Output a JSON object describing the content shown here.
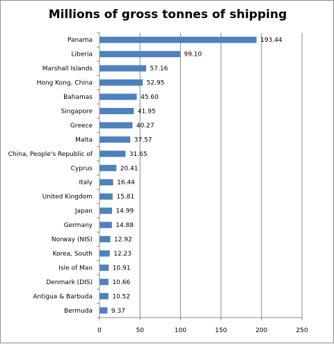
{
  "chart_data": {
    "type": "bar",
    "orientation": "horizontal",
    "title": "Millions of gross tonnes of shipping",
    "xlabel": "",
    "ylabel": "",
    "categories": [
      "Panama",
      "Liberia",
      "Marshall Islands",
      "Hong Kong, China",
      "Bahamas",
      "Singapore",
      "Greece",
      "Malta",
      "China, People's Republic of",
      "Cyprus",
      "Italy",
      "United Kingdom",
      "Japan",
      "Germany",
      "Norway (NIS)",
      "Korea, South",
      "Isle of Man",
      "Denmark (DIS)",
      "Antigua & Barbuda",
      "Bermuda"
    ],
    "values": [
      193.44,
      99.1,
      57.16,
      52.95,
      45.6,
      41.95,
      40.27,
      37.57,
      31.65,
      20.41,
      16.44,
      15.81,
      14.99,
      14.88,
      12.92,
      12.23,
      10.91,
      10.66,
      10.52,
      9.37
    ],
    "value_labels": [
      "193.44",
      "99.10",
      "57.16",
      "52.95",
      "45.60",
      "41.95",
      "40.27",
      "37.57",
      "31.65",
      "20.41",
      "16.44",
      "15.81",
      "14.99",
      "14.88",
      "12.92",
      "12.23",
      "10.91",
      "10.66",
      "10.52",
      "9.37"
    ],
    "xlim": [
      0,
      250
    ],
    "xticks": [
      0,
      50,
      100,
      150,
      200,
      250
    ],
    "xtick_labels": [
      "0",
      "50",
      "100",
      "150",
      "200",
      "250"
    ],
    "grid": "vertical major gridlines",
    "legend": "none",
    "bar_color": "#4f81bd",
    "gridline_color": "#888888"
  }
}
